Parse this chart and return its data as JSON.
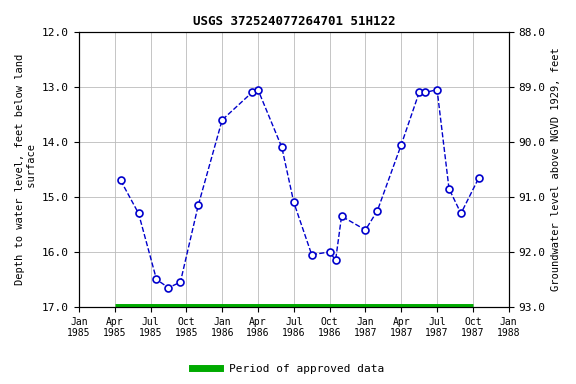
{
  "title": "USGS 372524077264701 51H122",
  "ylabel_left": "Depth to water level, feet below land\n surface",
  "ylabel_right": "Groundwater level above NGVD 1929, feet",
  "line_color": "#0000CC",
  "marker_color": "#0000CC",
  "bg_color": "#ffffff",
  "plot_bg_color": "#ffffff",
  "grid_color": "#bbbbbb",
  "approved_color": "#00aa00",
  "ylim_left": [
    12.0,
    17.0
  ],
  "ylim_right": [
    88.0,
    93.0
  ],
  "x_tick_labels": [
    "Jan\n1985",
    "Apr\n1985",
    "Jul\n1985",
    "Oct\n1985",
    "Jan\n1986",
    "Apr\n1986",
    "Jul\n1986",
    "Oct\n1986",
    "Jan\n1987",
    "Apr\n1987",
    "Jul\n1987",
    "Oct\n1987",
    "Jan\n1988"
  ],
  "x_tick_positions": [
    0,
    3,
    6,
    9,
    12,
    15,
    18,
    21,
    24,
    27,
    30,
    33,
    36
  ],
  "data_x": [
    3.5,
    5.0,
    6.5,
    7.5,
    8.5,
    10.0,
    12.0,
    14.5,
    15.0,
    17.0,
    18.0,
    19.5,
    21.0,
    21.5,
    22.0,
    24.0,
    25.0,
    27.0,
    28.5,
    29.0,
    30.0,
    31.0,
    32.0,
    33.5
  ],
  "data_y": [
    14.7,
    15.3,
    16.5,
    16.65,
    16.55,
    15.15,
    13.6,
    13.1,
    13.05,
    14.1,
    15.1,
    16.05,
    16.0,
    16.15,
    15.35,
    15.6,
    15.25,
    14.05,
    13.1,
    13.1,
    13.05,
    14.85,
    15.3,
    14.65
  ],
  "approved_xmin": 3.0,
  "approved_xmax": 33.0,
  "legend_label": "Period of approved data"
}
